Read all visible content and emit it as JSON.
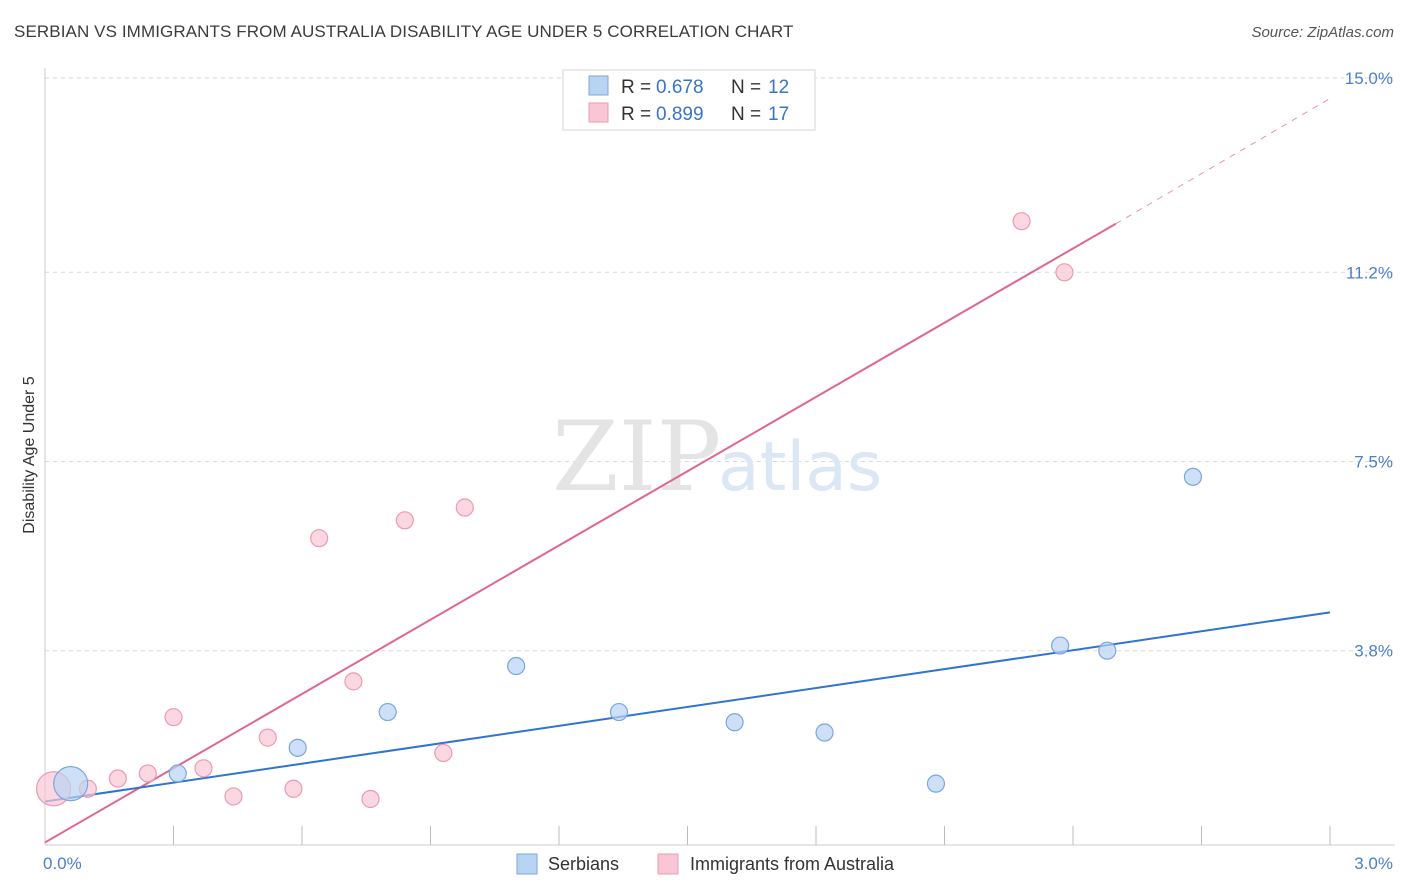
{
  "title": "SERBIAN VS IMMIGRANTS FROM AUSTRALIA DISABILITY AGE UNDER 5 CORRELATION CHART",
  "source": "Source: ZipAtlas.com",
  "watermark": {
    "zip": "ZIP",
    "atlas": "atlas"
  },
  "colors": {
    "serbians_fill": "#b9d3f3",
    "serbians_stroke": "#7aa6e0",
    "serbians_line": "#2f74d0",
    "australia_fill": "#f8c6d4",
    "australia_stroke": "#ec9ab3",
    "australia_line": "#e0668e",
    "grid": "#d9d9d9"
  },
  "legend": {
    "rows": [
      {
        "r_label": "R = ",
        "r_value": "0.678",
        "n_label": "N = ",
        "n_value": "12"
      },
      {
        "r_label": "R = ",
        "r_value": "0.899",
        "n_label": "N = ",
        "n_value": "17"
      }
    ]
  },
  "chart_data": {
    "type": "scatter",
    "ylabel": "Disability Age Under 5",
    "xlim": [
      0.0,
      3.0
    ],
    "ylim": [
      0.0,
      15.0
    ],
    "x_tick_labels": [
      "0.0%",
      "3.0%"
    ],
    "y_ticks": [
      3.8,
      7.5,
      11.2,
      15.0
    ],
    "y_tick_labels": [
      "3.8%",
      "7.5%",
      "11.2%",
      "15.0%"
    ],
    "grid": true,
    "legend_position": "top-center",
    "series": [
      {
        "name": "Serbians",
        "points": [
          {
            "x": 0.06,
            "y": 1.2,
            "big": true
          },
          {
            "x": 0.31,
            "y": 1.4
          },
          {
            "x": 0.59,
            "y": 1.9
          },
          {
            "x": 0.8,
            "y": 2.6
          },
          {
            "x": 1.1,
            "y": 3.5
          },
          {
            "x": 1.34,
            "y": 2.6
          },
          {
            "x": 1.61,
            "y": 2.4
          },
          {
            "x": 1.82,
            "y": 2.2
          },
          {
            "x": 2.08,
            "y": 1.2
          },
          {
            "x": 2.37,
            "y": 3.9
          },
          {
            "x": 2.48,
            "y": 3.8
          },
          {
            "x": 2.68,
            "y": 7.2
          }
        ],
        "trend": {
          "x1": 0.0,
          "y1": 0.85,
          "x2": 3.0,
          "y2": 4.55
        }
      },
      {
        "name": "Immigrants from Australia",
        "points": [
          {
            "x": 0.02,
            "y": 1.1,
            "big": true
          },
          {
            "x": 0.1,
            "y": 1.1
          },
          {
            "x": 0.17,
            "y": 1.3
          },
          {
            "x": 0.24,
            "y": 1.4
          },
          {
            "x": 0.3,
            "y": 2.5
          },
          {
            "x": 0.37,
            "y": 1.5
          },
          {
            "x": 0.44,
            "y": 0.95
          },
          {
            "x": 0.52,
            "y": 2.1
          },
          {
            "x": 0.58,
            "y": 1.1
          },
          {
            "x": 0.64,
            "y": 6.0
          },
          {
            "x": 0.72,
            "y": 3.2
          },
          {
            "x": 0.76,
            "y": 0.9
          },
          {
            "x": 0.84,
            "y": 6.35
          },
          {
            "x": 0.93,
            "y": 1.8
          },
          {
            "x": 0.98,
            "y": 6.6
          },
          {
            "x": 2.28,
            "y": 12.2
          },
          {
            "x": 2.38,
            "y": 11.2
          }
        ],
        "trend": {
          "x1": 0.0,
          "y1": 0.05,
          "x2": 2.5,
          "y2": 12.15
        },
        "trend_dashed": {
          "x1": 2.5,
          "y1": 12.15,
          "x2": 3.0,
          "y2": 14.6
        }
      }
    ]
  }
}
